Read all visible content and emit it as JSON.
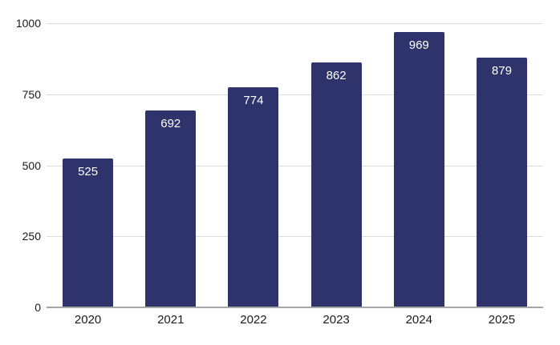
{
  "chart_data": {
    "type": "bar",
    "categories": [
      "2020",
      "2021",
      "2022",
      "2023",
      "2024",
      "2025"
    ],
    "values": [
      525,
      692,
      774,
      862,
      969,
      879
    ],
    "title": "",
    "xlabel": "",
    "ylabel": "",
    "ylim": [
      0,
      1000
    ],
    "yticks": [
      0,
      250,
      500,
      750,
      1000
    ],
    "grid": true,
    "legend": false,
    "data_labels": "inside-top-white"
  },
  "colors": {
    "bar": "#2f336b",
    "gridline": "#dcdcdc",
    "axis_line": "#a6a6a6",
    "tick_text": "#1a1a1a",
    "value_label": "#ffffff",
    "background": "#ffffff"
  }
}
